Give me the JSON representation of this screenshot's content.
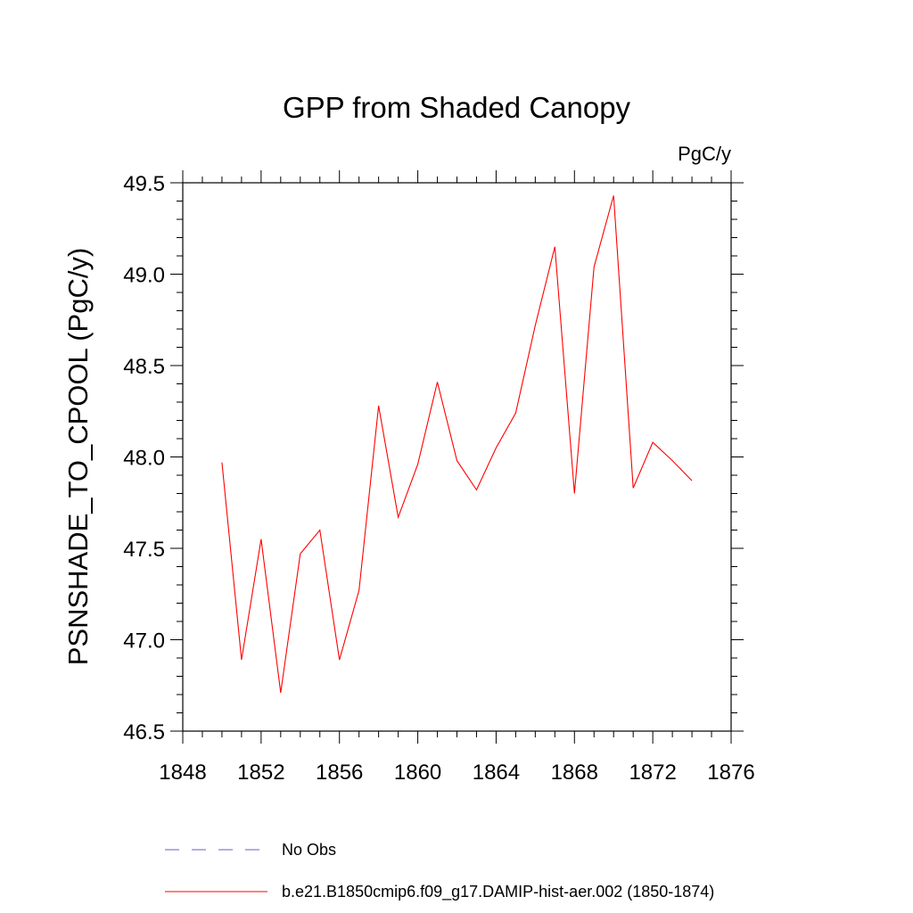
{
  "chart_data": {
    "type": "line",
    "title": "GPP from Shaded Canopy",
    "units_label": "PgC/y",
    "xlabel": "",
    "ylabel": "PSNSHADE_TO_CPOOL  (PgC/y)",
    "xlim": [
      1848,
      1876
    ],
    "ylim": [
      46.5,
      49.5
    ],
    "x_ticks": [
      "1848",
      "1852",
      "1856",
      "1860",
      "1864",
      "1868",
      "1872",
      "1876"
    ],
    "y_ticks": [
      "46.5",
      "47.0",
      "47.5",
      "48.0",
      "48.5",
      "49.0",
      "49.5"
    ],
    "grid": false,
    "legend_position": "bottom",
    "series": [
      {
        "name": "No Obs",
        "color": "#6a5acd",
        "dash": "dashed",
        "x": [],
        "values": []
      },
      {
        "name": "b.e21.B1850cmip6.f09_g17.DAMIP-hist-aer.002 (1850-1874)",
        "color": "#ff0000",
        "dash": "solid",
        "x": [
          1850,
          1851,
          1852,
          1853,
          1854,
          1855,
          1856,
          1857,
          1858,
          1859,
          1860,
          1861,
          1862,
          1863,
          1864,
          1865,
          1866,
          1867,
          1868,
          1869,
          1870,
          1871,
          1872,
          1873,
          1874
        ],
        "values": [
          47.97,
          46.89,
          47.55,
          46.71,
          47.47,
          47.6,
          46.89,
          47.27,
          48.28,
          47.67,
          47.96,
          48.41,
          47.98,
          47.82,
          48.05,
          48.24,
          48.72,
          49.15,
          47.8,
          49.04,
          49.43,
          47.83,
          48.08,
          47.98,
          47.87
        ]
      }
    ]
  }
}
